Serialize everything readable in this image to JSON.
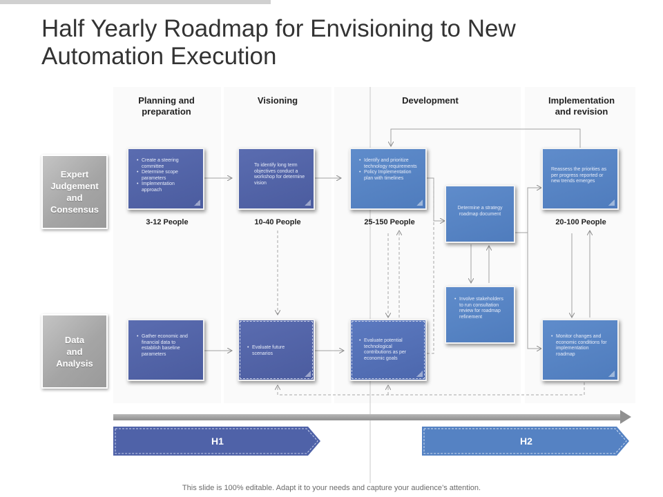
{
  "title": "Half Yearly Roadmap for Envisioning to New Automation  Execution",
  "columns": [
    "Planning and\npreparation",
    "Visioning",
    "Development",
    "Implementation\nand revision"
  ],
  "rows": [
    "Expert\nJudgement\nand\nConsensus",
    "Data\nand\nAnalysis"
  ],
  "boxes": {
    "plan_top": [
      "Create a steering committee",
      "Determine scope parameters",
      "Implementation approach"
    ],
    "vision_top": "To identify long term objectives conduct a workshop for determine vision",
    "dev_top": [
      "Identify and prioritize technology requirements",
      "Policy Implementation plan with timelines"
    ],
    "dev_strategy": "Determine a strategy roadmap document",
    "dev_involve": [
      "Involve stakeholders to run consultation review for roadmap refinement"
    ],
    "impl_top": "Reassess the priorities as per progress reported or new trends emerges",
    "plan_bottom": [
      "Gather economic and financial data to establish baseline parameters"
    ],
    "vision_bottom": [
      "Evaluate future scenarios"
    ],
    "dev_bottom": [
      "Evaluate potential technological contributions as per economic goals"
    ],
    "impl_bottom": [
      "Monitor changes and economic conditions for implementation roadmap"
    ]
  },
  "people": [
    "3-12 People",
    "10-40 People",
    "25-150 People",
    "20-100 People"
  ],
  "timeline": {
    "h1": "H1",
    "h2": "H2"
  },
  "colors": {
    "box_dark": "#4b5c9f",
    "box_light": "#4f7cbd",
    "row_label": "#a5a5a5",
    "timeline": "#909090"
  },
  "footer": "This slide is 100% editable. Adapt it to your needs and capture your audience’s attention."
}
